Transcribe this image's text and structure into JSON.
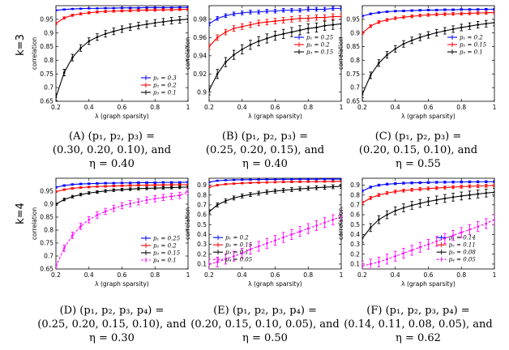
{
  "row_labels": [
    "k=3",
    "k=4"
  ],
  "captions": [
    {
      "l1": "(A) (p₁, p₂, p₃) =",
      "l2": "(0.30, 0.20, 0.10), and",
      "l3": "η = 0.40"
    },
    {
      "l1": "(B) (p₁, p₂, p₃) =",
      "l2": "(0.25, 0.20, 0.15), and",
      "l3": "η = 0.40"
    },
    {
      "l1": "(C) (p₁, p₂, p₃) =",
      "l2": "(0.20, 0.15, 0.10), and",
      "l3": "η = 0.55"
    },
    {
      "l1": "(D) (p₁, p₂, p₃, p₄) =",
      "l2": "(0.25, 0.20, 0.15, 0.10), and",
      "l3": "η = 0.30"
    },
    {
      "l1": "(E) (p₁, p₂, p₃, p₄) =",
      "l2": "(0.20, 0.15, 0.10, 0.05), and",
      "l3": "η = 0.50"
    },
    {
      "l1": "(F) (p₁, p₂, p₃, p₄) =",
      "l2": "(0.14, 0.11, 0.08, 0.05), and",
      "l3": "η = 0.62"
    }
  ],
  "colors": {
    "p1": "#0000ff",
    "p2": "#ff0000",
    "p3": "#000000",
    "p4": "#ff00ff"
  },
  "chart_data": [
    {
      "type": "line",
      "panel": "A",
      "xlabel": "λ (graph sparsity)",
      "ylabel": "correlation",
      "xlim": [
        0.2,
        1.0
      ],
      "ylim": [
        0.65,
        1.0
      ],
      "xticks": [
        "0.2",
        "0.4",
        "0.6",
        "0.8",
        "1"
      ],
      "xtick_values": [
        0.2,
        0.4,
        0.6,
        0.8,
        1.0
      ],
      "yticks": [
        "0.65",
        "0.7",
        "0.75",
        "0.8",
        "0.85",
        "0.9",
        "0.95"
      ],
      "ytick_values": [
        0.65,
        0.7,
        0.75,
        0.8,
        0.85,
        0.9,
        0.95
      ],
      "legend_position": "bottom-right",
      "x": [
        0.2,
        0.25,
        0.3,
        0.35,
        0.4,
        0.45,
        0.5,
        0.55,
        0.6,
        0.65,
        0.7,
        0.75,
        0.8,
        0.85,
        0.9,
        0.95,
        1.0
      ],
      "series": [
        {
          "name": "p₁ = 0.3",
          "color": "#0000ff",
          "values": [
            0.983,
            0.986,
            0.988,
            0.989,
            0.99,
            0.99,
            0.991,
            0.991,
            0.992,
            0.992,
            0.992,
            0.993,
            0.993,
            0.993,
            0.993,
            0.994,
            0.994
          ],
          "err": 0.002
        },
        {
          "name": "p₂ = 0.2",
          "color": "#ff0000",
          "values": [
            0.935,
            0.955,
            0.965,
            0.97,
            0.974,
            0.977,
            0.979,
            0.98,
            0.981,
            0.982,
            0.983,
            0.984,
            0.984,
            0.985,
            0.985,
            0.986,
            0.986
          ],
          "err": 0.004
        },
        {
          "name": "p₃ = 0.1",
          "color": "#000000",
          "values": [
            0.665,
            0.755,
            0.81,
            0.845,
            0.87,
            0.885,
            0.897,
            0.906,
            0.914,
            0.921,
            0.927,
            0.932,
            0.937,
            0.941,
            0.945,
            0.948,
            0.951
          ],
          "err": 0.012
        }
      ]
    },
    {
      "type": "line",
      "panel": "B",
      "xlabel": "λ (graph sparsity)",
      "ylabel": "correlation",
      "xlim": [
        0.2,
        1.0
      ],
      "ylim": [
        0.89,
        0.995
      ],
      "xticks": [
        "0.2",
        "0.4",
        "0.6",
        "0.8",
        "1"
      ],
      "xtick_values": [
        0.2,
        0.4,
        0.6,
        0.8,
        1.0
      ],
      "yticks": [
        "0.9",
        "0.92",
        "0.94",
        "0.96",
        "0.98"
      ],
      "ytick_values": [
        0.9,
        0.92,
        0.94,
        0.96,
        0.98
      ],
      "legend_position": "top-right",
      "x": [
        0.2,
        0.25,
        0.3,
        0.35,
        0.4,
        0.45,
        0.5,
        0.55,
        0.6,
        0.65,
        0.7,
        0.75,
        0.8,
        0.85,
        0.9,
        0.95,
        1.0
      ],
      "series": [
        {
          "name": "p₁ = 0.25",
          "color": "#0000ff",
          "values": [
            0.975,
            0.981,
            0.984,
            0.986,
            0.987,
            0.988,
            0.988,
            0.989,
            0.989,
            0.99,
            0.99,
            0.99,
            0.991,
            0.991,
            0.991,
            0.992,
            0.992
          ],
          "err": 0.002
        },
        {
          "name": "p₂ = 0.2",
          "color": "#ff0000",
          "values": [
            0.95,
            0.96,
            0.966,
            0.97,
            0.972,
            0.974,
            0.976,
            0.977,
            0.978,
            0.979,
            0.98,
            0.981,
            0.981,
            0.982,
            0.982,
            0.983,
            0.983
          ],
          "err": 0.003
        },
        {
          "name": "p₃ = 0.15",
          "color": "#000000",
          "values": [
            0.902,
            0.92,
            0.933,
            0.941,
            0.947,
            0.952,
            0.956,
            0.959,
            0.962,
            0.964,
            0.966,
            0.968,
            0.97,
            0.971,
            0.973,
            0.974,
            0.975
          ],
          "err": 0.005
        }
      ]
    },
    {
      "type": "line",
      "panel": "C",
      "xlabel": "λ (graph sparsity)",
      "ylabel": "correlation",
      "xlim": [
        0.2,
        1.0
      ],
      "ylim": [
        0.65,
        1.0
      ],
      "xticks": [
        "0.2",
        "0.4",
        "0.6",
        "0.8",
        "1"
      ],
      "xtick_values": [
        0.2,
        0.4,
        0.6,
        0.8,
        1.0
      ],
      "yticks": [
        "0.65",
        "0.7",
        "0.75",
        "0.8",
        "0.85",
        "0.9",
        "0.95"
      ],
      "ytick_values": [
        0.65,
        0.7,
        0.75,
        0.8,
        0.85,
        0.9,
        0.95
      ],
      "legend_position": "top-right",
      "x": [
        0.2,
        0.25,
        0.3,
        0.35,
        0.4,
        0.45,
        0.5,
        0.55,
        0.6,
        0.65,
        0.7,
        0.75,
        0.8,
        0.85,
        0.9,
        0.95,
        1.0
      ],
      "series": [
        {
          "name": "p₁ = 0.2",
          "color": "#0000ff",
          "values": [
            0.962,
            0.97,
            0.975,
            0.978,
            0.98,
            0.981,
            0.982,
            0.983,
            0.984,
            0.984,
            0.985,
            0.985,
            0.986,
            0.986,
            0.986,
            0.987,
            0.987
          ],
          "err": 0.003
        },
        {
          "name": "p₂ = 0.15",
          "color": "#ff0000",
          "values": [
            0.9,
            0.925,
            0.94,
            0.948,
            0.954,
            0.958,
            0.961,
            0.964,
            0.966,
            0.968,
            0.969,
            0.97,
            0.971,
            0.972,
            0.973,
            0.974,
            0.975
          ],
          "err": 0.005
        },
        {
          "name": "p₃ = 0.1",
          "color": "#000000",
          "values": [
            0.675,
            0.745,
            0.79,
            0.82,
            0.842,
            0.86,
            0.873,
            0.884,
            0.893,
            0.901,
            0.908,
            0.914,
            0.92,
            0.925,
            0.93,
            0.934,
            0.938
          ],
          "err": 0.012
        }
      ]
    },
    {
      "type": "line",
      "panel": "D",
      "xlabel": "λ (graph sparsity)",
      "ylabel": "correlation",
      "xlim": [
        0.2,
        1.0
      ],
      "ylim": [
        0.65,
        1.0
      ],
      "xticks": [
        "0.2",
        "0.4",
        "0.6",
        "0.8",
        "1"
      ],
      "xtick_values": [
        0.2,
        0.4,
        0.6,
        0.8,
        1.0
      ],
      "yticks": [
        "0.65",
        "0.7",
        "0.75",
        "0.8",
        "0.85",
        "0.9",
        "0.95"
      ],
      "ytick_values": [
        0.65,
        0.7,
        0.75,
        0.8,
        0.85,
        0.9,
        0.95
      ],
      "legend_position": "bottom-right",
      "x": [
        0.2,
        0.25,
        0.3,
        0.35,
        0.4,
        0.45,
        0.5,
        0.55,
        0.6,
        0.65,
        0.7,
        0.75,
        0.8,
        0.85,
        0.9,
        0.95,
        1.0
      ],
      "series": [
        {
          "name": "p₁ = 0.25",
          "color": "#0000ff",
          "values": [
            0.965,
            0.972,
            0.976,
            0.978,
            0.979,
            0.98,
            0.981,
            0.981,
            0.982,
            0.982,
            0.983,
            0.983,
            0.983,
            0.984,
            0.984,
            0.984,
            0.985
          ],
          "err": 0.003
        },
        {
          "name": "p₂ = 0.2",
          "color": "#ff0000",
          "values": [
            0.948,
            0.956,
            0.961,
            0.964,
            0.966,
            0.968,
            0.969,
            0.97,
            0.971,
            0.972,
            0.973,
            0.973,
            0.974,
            0.974,
            0.975,
            0.975,
            0.975
          ],
          "err": 0.003
        },
        {
          "name": "p₃ = 0.15",
          "color": "#000000",
          "values": [
            0.9,
            0.918,
            0.929,
            0.937,
            0.943,
            0.947,
            0.951,
            0.954,
            0.956,
            0.958,
            0.96,
            0.961,
            0.962,
            0.963,
            0.964,
            0.965,
            0.966
          ],
          "err": 0.005
        },
        {
          "name": "p₄ = 0.1",
          "color": "#ff00ff",
          "values": [
            0.66,
            0.73,
            0.78,
            0.815,
            0.84,
            0.858,
            0.872,
            0.884,
            0.894,
            0.902,
            0.909,
            0.916,
            0.921,
            0.926,
            0.93,
            0.934,
            0.948
          ],
          "err": 0.012,
          "dashed": true
        }
      ]
    },
    {
      "type": "line",
      "panel": "E",
      "xlabel": "λ (graph sparsity)",
      "ylabel": "correlation",
      "xlim": [
        0.2,
        1.0
      ],
      "ylim": [
        0.05,
        0.97
      ],
      "xticks": [
        "0.2",
        "0.4",
        "0.6",
        "0.8",
        "1"
      ],
      "xtick_values": [
        0.2,
        0.4,
        0.6,
        0.8,
        1.0
      ],
      "yticks": [
        "0.1",
        "0.2",
        "0.3",
        "0.4",
        "0.5",
        "0.6",
        "0.7",
        "0.8",
        "0.9"
      ],
      "ytick_values": [
        0.1,
        0.2,
        0.3,
        0.4,
        0.5,
        0.6,
        0.7,
        0.8,
        0.9
      ],
      "legend_position": "center-left",
      "x": [
        0.2,
        0.25,
        0.3,
        0.35,
        0.4,
        0.45,
        0.5,
        0.55,
        0.6,
        0.65,
        0.7,
        0.75,
        0.8,
        0.85,
        0.9,
        0.95,
        1.0
      ],
      "series": [
        {
          "name": "p₁ = 0.2",
          "color": "#0000ff",
          "values": [
            0.93,
            0.945,
            0.95,
            0.953,
            0.955,
            0.956,
            0.957,
            0.958,
            0.958,
            0.959,
            0.959,
            0.96,
            0.96,
            0.96,
            0.961,
            0.961,
            0.961
          ],
          "err": 0.005
        },
        {
          "name": "p₂ = 0.15",
          "color": "#ff0000",
          "values": [
            0.88,
            0.9,
            0.91,
            0.915,
            0.92,
            0.923,
            0.926,
            0.928,
            0.93,
            0.932,
            0.933,
            0.934,
            0.935,
            0.936,
            0.937,
            0.938,
            0.939
          ],
          "err": 0.007
        },
        {
          "name": "p₃ = 0.1",
          "color": "#000000",
          "values": [
            0.63,
            0.7,
            0.74,
            0.77,
            0.79,
            0.805,
            0.818,
            0.83,
            0.84,
            0.848,
            0.855,
            0.862,
            0.868,
            0.874,
            0.879,
            0.884,
            0.888
          ],
          "err": 0.02
        },
        {
          "name": "p₄ = 0.05",
          "color": "#ff00ff",
          "values": [
            0.1,
            0.12,
            0.15,
            0.18,
            0.21,
            0.25,
            0.28,
            0.31,
            0.34,
            0.37,
            0.4,
            0.43,
            0.46,
            0.49,
            0.52,
            0.55,
            0.58
          ],
          "err": 0.05,
          "dashed": true
        }
      ]
    },
    {
      "type": "line",
      "panel": "F",
      "xlabel": "λ (graph sparsity)",
      "ylabel": "correlation",
      "xlim": [
        0.2,
        1.0
      ],
      "ylim": [
        0.05,
        0.97
      ],
      "xticks": [
        "0.2",
        "0.4",
        "0.6",
        "0.8",
        "1"
      ],
      "xtick_values": [
        0.2,
        0.4,
        0.6,
        0.8,
        1.0
      ],
      "yticks": [
        "0.1",
        "0.2",
        "0.3",
        "0.4",
        "0.5",
        "0.6",
        "0.7",
        "0.8",
        "0.9"
      ],
      "ytick_values": [
        0.1,
        0.2,
        0.3,
        0.4,
        0.5,
        0.6,
        0.7,
        0.8,
        0.9
      ],
      "legend_position": "center-right",
      "x": [
        0.2,
        0.25,
        0.3,
        0.35,
        0.4,
        0.45,
        0.5,
        0.55,
        0.6,
        0.65,
        0.7,
        0.75,
        0.8,
        0.85,
        0.9,
        0.95,
        1.0
      ],
      "series": [
        {
          "name": "p₁ = 0.14",
          "color": "#0000ff",
          "values": [
            0.84,
            0.88,
            0.9,
            0.91,
            0.915,
            0.92,
            0.923,
            0.925,
            0.927,
            0.929,
            0.93,
            0.931,
            0.932,
            0.933,
            0.934,
            0.935,
            0.935
          ],
          "err": 0.01
        },
        {
          "name": "p₂ = 0.11",
          "color": "#ff0000",
          "values": [
            0.72,
            0.77,
            0.8,
            0.82,
            0.835,
            0.845,
            0.853,
            0.86,
            0.866,
            0.871,
            0.876,
            0.88,
            0.884,
            0.888,
            0.891,
            0.894,
            0.897
          ],
          "err": 0.015
        },
        {
          "name": "p₃ = 0.08",
          "color": "#000000",
          "values": [
            0.36,
            0.47,
            0.55,
            0.6,
            0.64,
            0.67,
            0.695,
            0.715,
            0.735,
            0.75,
            0.765,
            0.778,
            0.79,
            0.8,
            0.81,
            0.82,
            0.828
          ],
          "err": 0.04
        },
        {
          "name": "p₄ = 0.05",
          "color": "#ff00ff",
          "values": [
            0.08,
            0.1,
            0.12,
            0.15,
            0.18,
            0.21,
            0.24,
            0.27,
            0.3,
            0.33,
            0.36,
            0.39,
            0.42,
            0.45,
            0.48,
            0.51,
            0.55
          ],
          "err": 0.05,
          "dashed": true
        }
      ]
    }
  ]
}
